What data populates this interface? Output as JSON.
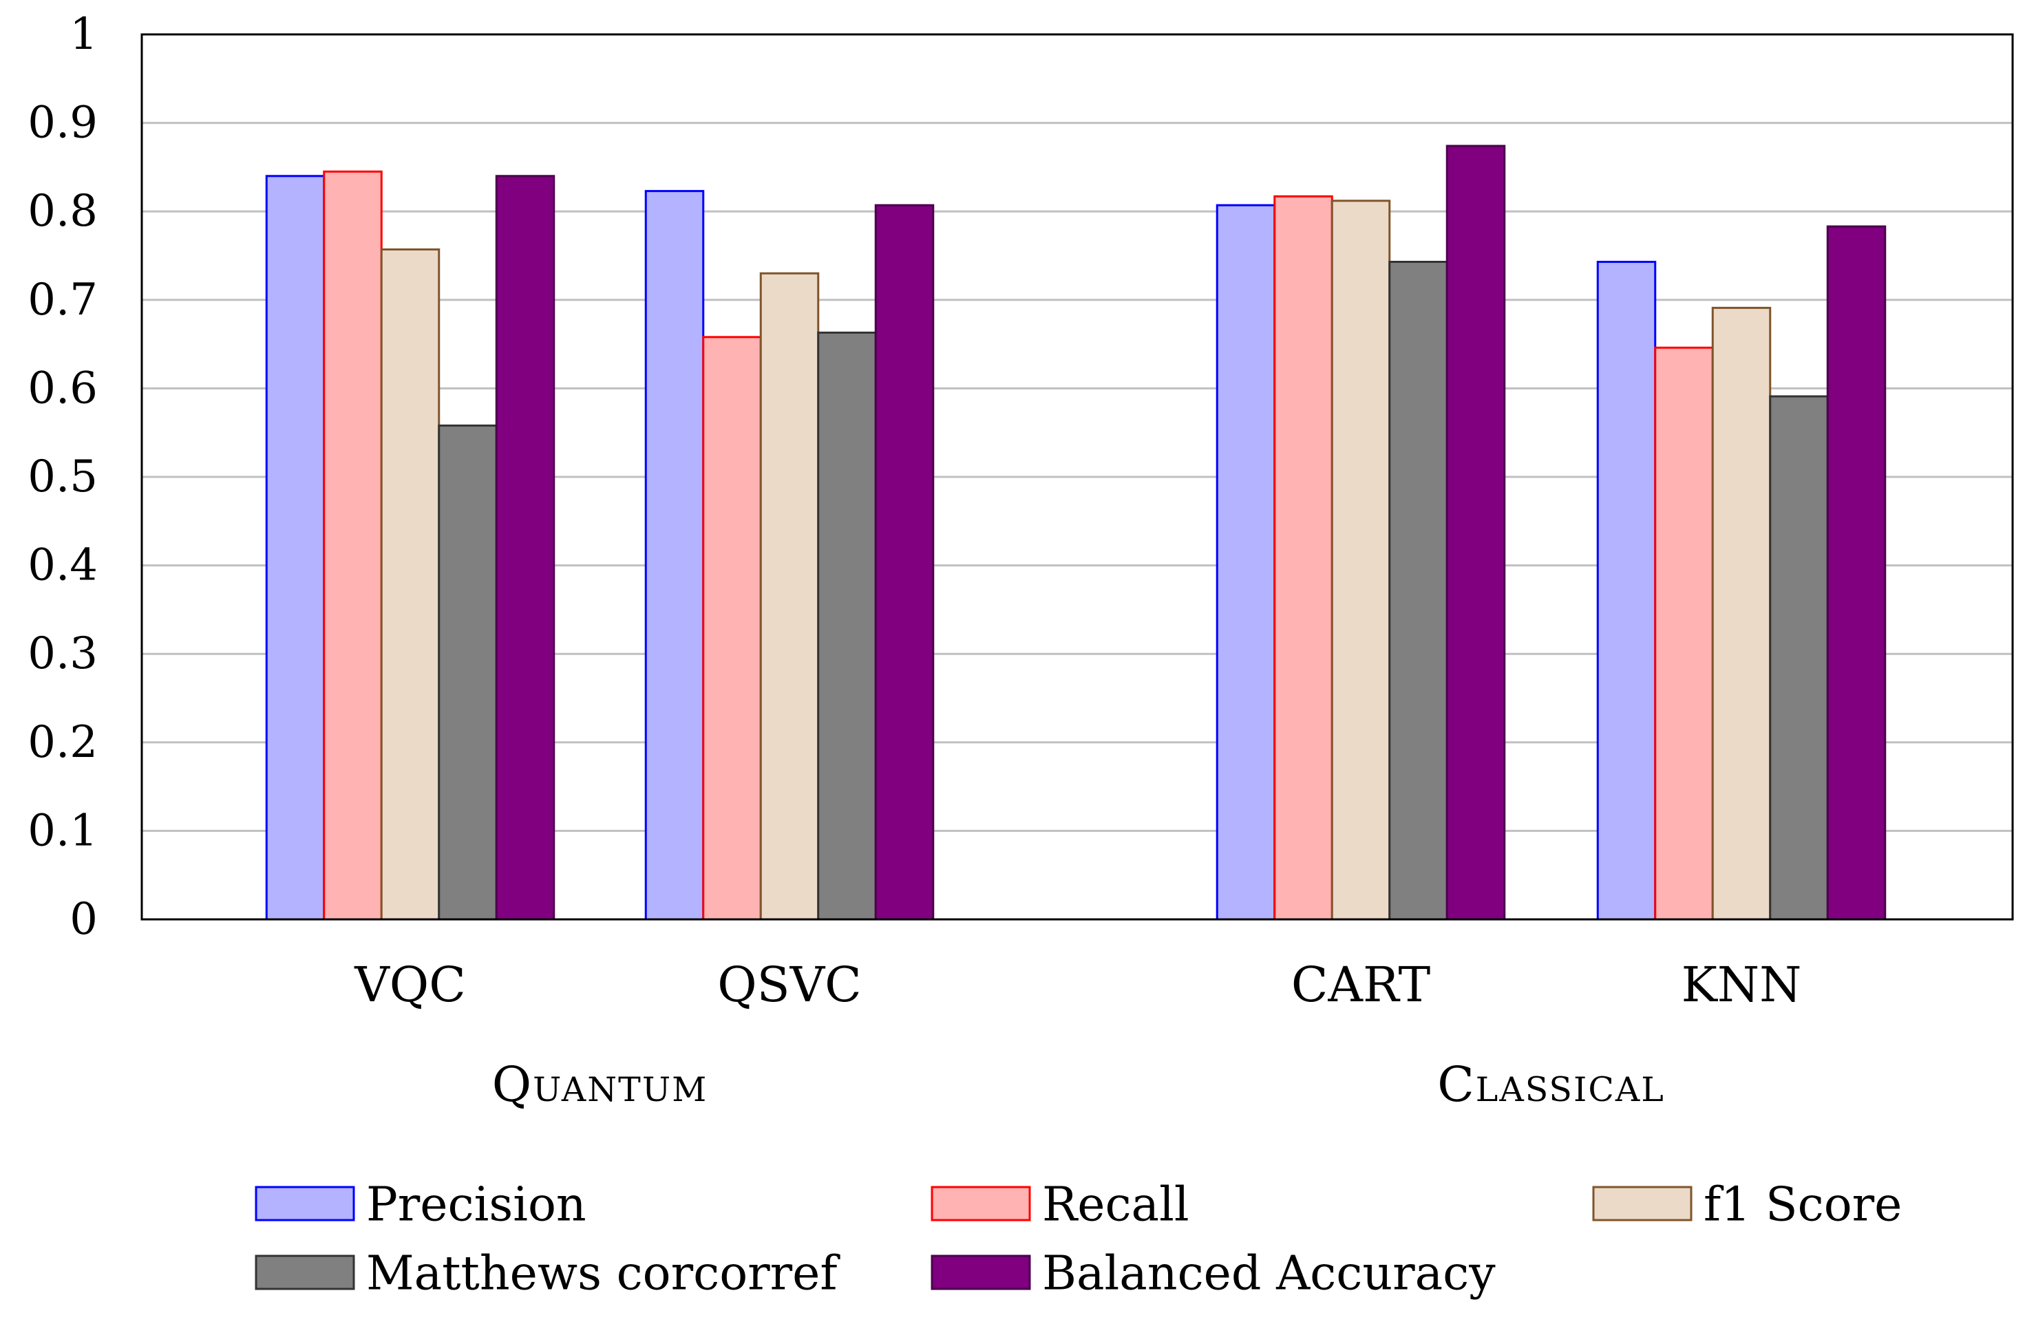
{
  "chart_data": {
    "type": "bar",
    "title": "",
    "xlabel": "",
    "ylabel": "",
    "ylim": [
      0,
      1
    ],
    "yticks": [
      "0",
      "0.1",
      "0.2",
      "0.3",
      "0.4",
      "0.5",
      "0.6",
      "0.7",
      "0.8",
      "0.9",
      "1"
    ],
    "grid": true,
    "legend_position": "bottom",
    "categories": [
      "VQC",
      "QSVC",
      "CART",
      "KNN"
    ],
    "groups": [
      {
        "label": "Quantum",
        "categories": [
          "VQC",
          "QSVC"
        ]
      },
      {
        "label": "Classical",
        "categories": [
          "CART",
          "KNN"
        ]
      }
    ],
    "series": [
      {
        "name": "Precision",
        "fill": "#b3b3ff",
        "stroke": "#0000ff",
        "values": [
          0.84,
          0.823,
          0.807,
          0.743
        ]
      },
      {
        "name": "Recall",
        "fill": "#ffb3b3",
        "stroke": "#ff0000",
        "values": [
          0.845,
          0.658,
          0.817,
          0.646
        ]
      },
      {
        "name": "f1 Score",
        "fill": "#ebdac8",
        "stroke": "#80552b",
        "values": [
          0.757,
          0.73,
          0.812,
          0.691
        ]
      },
      {
        "name": "Matthews corcorref",
        "fill": "#808080",
        "stroke": "#333333",
        "values": [
          0.558,
          0.663,
          0.743,
          0.591
        ]
      },
      {
        "name": "Balanced Accuracy",
        "fill": "#800080",
        "stroke": "#4d004d",
        "values": [
          0.84,
          0.807,
          0.874,
          0.783
        ]
      }
    ]
  }
}
